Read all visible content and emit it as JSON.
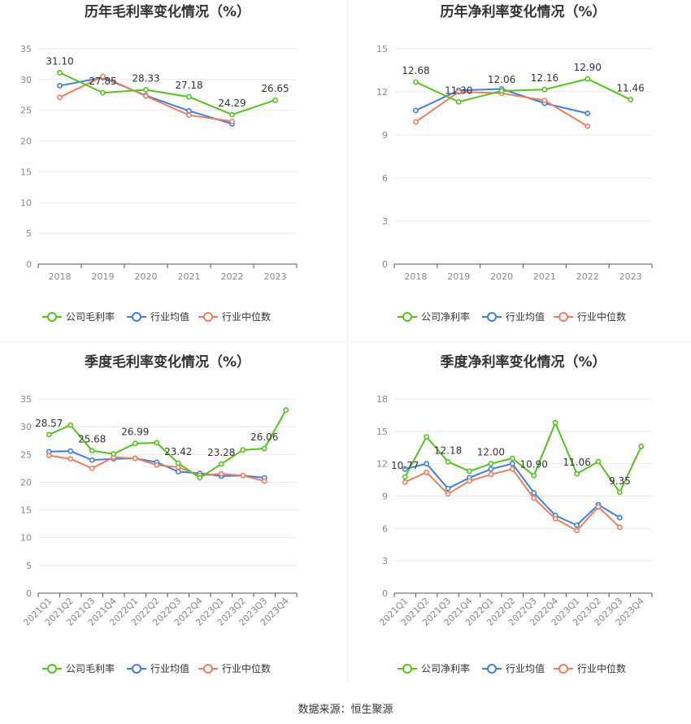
{
  "footer": "数据来源：恒生聚源",
  "legend_company_gross": "公司毛利率",
  "legend_company_net": "公司净利率",
  "legend_avg": "行业均值",
  "legend_median": "行业中位数",
  "colors": {
    "company": "#52c41a",
    "avg": "#3e7ee8",
    "median": "#f07e5a"
  },
  "chart_data": [
    {
      "type": "line",
      "title": "历年毛利率变化情况（%）",
      "categories": [
        "2018",
        "2019",
        "2020",
        "2021",
        "2022",
        "2023"
      ],
      "ylim": [
        0,
        35
      ],
      "yticks": [
        0,
        5,
        10,
        15,
        20,
        25,
        30,
        35
      ],
      "series": [
        {
          "name": "公司毛利率",
          "values": [
            31.1,
            27.85,
            28.33,
            27.18,
            24.29,
            26.65
          ]
        },
        {
          "name": "行业均值",
          "values": [
            29.0,
            30.3,
            27.4,
            24.9,
            22.8,
            null
          ]
        },
        {
          "name": "行业中位数",
          "values": [
            27.1,
            30.5,
            27.3,
            24.2,
            23.2,
            null
          ]
        }
      ],
      "data_labels": [
        "31.10",
        "27.85",
        "28.33",
        "27.18",
        "24.29",
        "26.65"
      ]
    },
    {
      "type": "line",
      "title": "历年净利率变化情况（%）",
      "categories": [
        "2018",
        "2019",
        "2020",
        "2021",
        "2022",
        "2023"
      ],
      "ylim": [
        0,
        15
      ],
      "yticks": [
        0,
        3,
        6,
        9,
        12,
        15
      ],
      "series": [
        {
          "name": "公司净利率",
          "values": [
            12.68,
            11.3,
            12.06,
            12.16,
            12.9,
            11.46
          ]
        },
        {
          "name": "行业均值",
          "values": [
            10.7,
            12.1,
            12.2,
            11.2,
            10.5,
            null
          ]
        },
        {
          "name": "行业中位数",
          "values": [
            9.9,
            12.0,
            11.9,
            11.4,
            9.6,
            null
          ]
        }
      ],
      "data_labels": [
        "12.68",
        "11.30",
        "12.06",
        "12.16",
        "12.90",
        "11.46"
      ]
    },
    {
      "type": "line",
      "title": "季度毛利率变化情况（%）",
      "categories": [
        "2021Q1",
        "2021Q2",
        "2021Q3",
        "2021Q4",
        "2022Q1",
        "2022Q2",
        "2022Q3",
        "2022Q4",
        "2023Q1",
        "2023Q2",
        "2023Q3",
        "2023Q4"
      ],
      "ylim": [
        0,
        35
      ],
      "yticks": [
        0,
        5,
        10,
        15,
        20,
        25,
        30,
        35
      ],
      "series": [
        {
          "name": "公司毛利率",
          "values": [
            28.57,
            30.3,
            25.68,
            25.1,
            26.99,
            27.1,
            23.42,
            20.8,
            23.28,
            25.8,
            26.06,
            33.0
          ]
        },
        {
          "name": "行业均值",
          "values": [
            25.5,
            25.6,
            24.0,
            24.2,
            24.3,
            23.6,
            21.9,
            21.6,
            21.1,
            21.2,
            20.8,
            null
          ]
        },
        {
          "name": "行业中位数",
          "values": [
            24.8,
            24.2,
            22.5,
            24.5,
            24.3,
            23.1,
            22.7,
            21.2,
            21.5,
            21.2,
            20.2,
            null
          ]
        }
      ],
      "data_labels": [
        "28.57",
        "",
        "25.68",
        "",
        "26.99",
        "",
        "23.42",
        "",
        "23.28",
        "",
        "26.06",
        ""
      ]
    },
    {
      "type": "line",
      "title": "季度净利率变化情况（%）",
      "categories": [
        "2021Q1",
        "2021Q2",
        "2021Q3",
        "2021Q4",
        "2022Q1",
        "2022Q2",
        "2022Q3",
        "2022Q4",
        "2023Q1",
        "2023Q2",
        "2023Q3",
        "2023Q4"
      ],
      "ylim": [
        0,
        18
      ],
      "yticks": [
        0,
        3,
        6,
        9,
        12,
        15,
        18
      ],
      "series": [
        {
          "name": "公司净利率",
          "values": [
            10.77,
            14.5,
            12.18,
            11.3,
            12.0,
            12.5,
            10.9,
            15.8,
            11.06,
            12.2,
            9.35,
            13.6
          ]
        },
        {
          "name": "行业均值",
          "values": [
            11.5,
            12.0,
            9.7,
            10.7,
            11.5,
            12.0,
            9.3,
            7.2,
            6.3,
            8.2,
            7.0,
            null
          ]
        },
        {
          "name": "行业中位数",
          "values": [
            10.3,
            11.2,
            9.2,
            10.4,
            11.0,
            11.5,
            8.8,
            6.9,
            5.8,
            8.0,
            6.1,
            null
          ]
        }
      ],
      "data_labels": [
        "10.77",
        "",
        "12.18",
        "",
        "12.00",
        "",
        "10.90",
        "",
        "11.06",
        "",
        "9.35",
        ""
      ]
    }
  ]
}
